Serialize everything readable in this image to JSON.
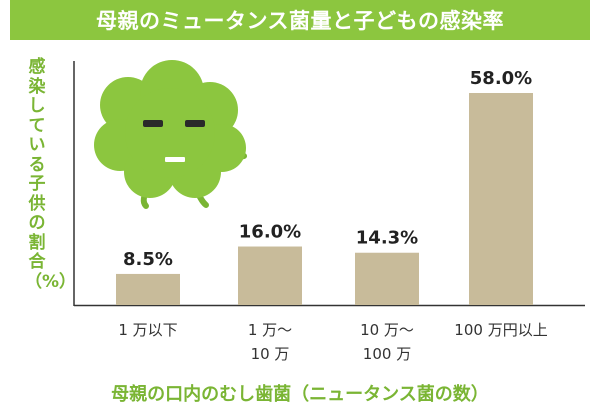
{
  "chart_data": {
    "type": "bar",
    "title": "母親のミュータンス菌量と子どもの感染率",
    "ylabel": "感染している子供の割合（%）",
    "xlabel": "母親の口内のむし歯菌（ニュータンス菌の数）",
    "categories": [
      "1 万以下",
      "1 万〜\n10 万",
      "10 万〜\n100 万",
      "100 万円以上"
    ],
    "values": [
      8.5,
      16.0,
      14.3,
      58.0
    ],
    "value_labels": [
      "8.5%",
      "16.0%",
      "14.3%",
      "58.0%"
    ],
    "ylim": [
      0,
      60
    ],
    "grid": false,
    "bar_color": "#c8bb9a",
    "accent_color": "#8cc63f",
    "mascot_icon": "green-germ-mascot"
  }
}
